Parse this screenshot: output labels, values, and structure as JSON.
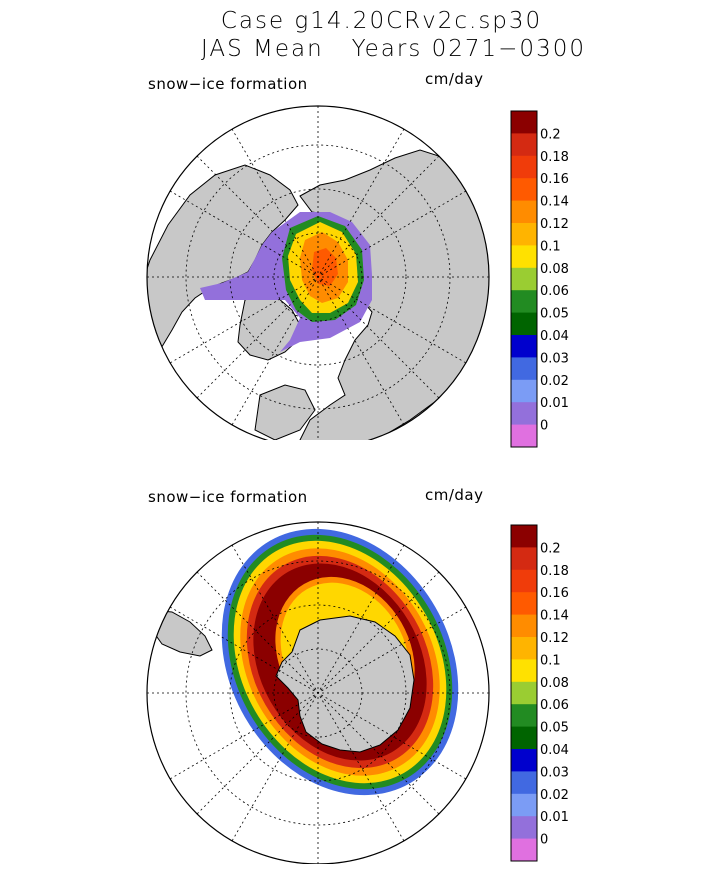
{
  "title_line1": "Case g14.20CRv2c.sp30",
  "title_line2": "JAS Mean   Years 0271−0300",
  "panels": [
    {
      "field_label": "snow−ice formation",
      "units": "cm/day",
      "hemisphere": "north"
    },
    {
      "field_label": "snow−ice formation",
      "units": "cm/day",
      "hemisphere": "south"
    }
  ],
  "colorbar": {
    "labels": [
      "0.2",
      "0.18",
      "0.16",
      "0.14",
      "0.12",
      "0.1",
      "0.08",
      "0.06",
      "0.05",
      "0.04",
      "0.03",
      "0.02",
      "0.01",
      "0"
    ],
    "colors": [
      "#8b0000",
      "#d42a12",
      "#f03c0a",
      "#ff5a00",
      "#ff8c00",
      "#ffb400",
      "#ffe100",
      "#9acd32",
      "#228b22",
      "#006400",
      "#0000cd",
      "#4169e1",
      "#7b9cf5",
      "#9370db",
      "#e070e0"
    ]
  },
  "colors": {
    "land": "#c8c8c8",
    "ocean": "#ffffff",
    "coast": "#000000"
  }
}
